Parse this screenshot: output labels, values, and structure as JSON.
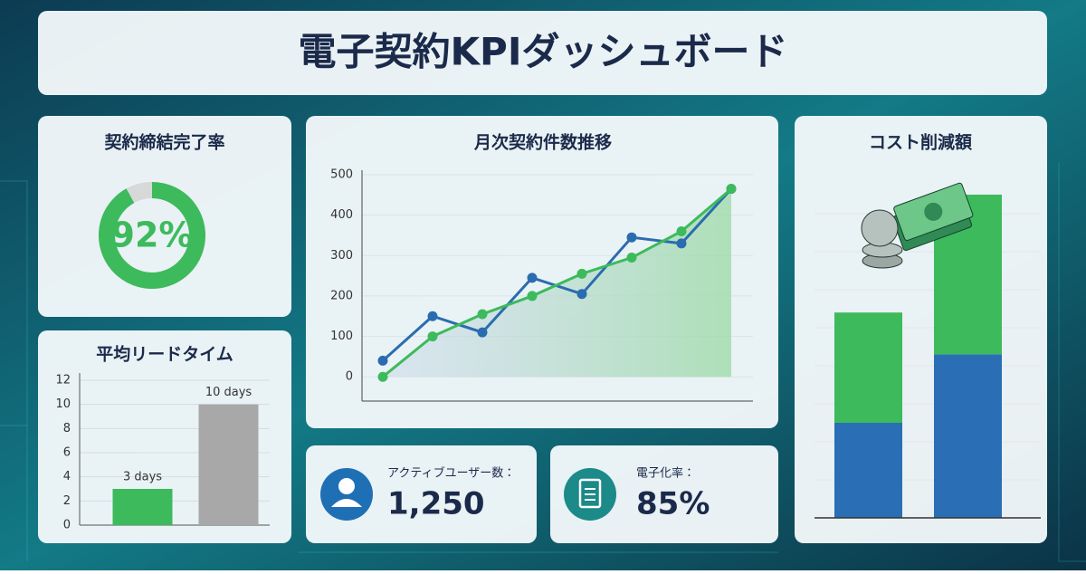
{
  "title": "電子契約KPIダッシュボード",
  "kpis": [
    {
      "label": "アクティブユーザー数：",
      "value": "1,250"
    },
    {
      "label": "電子化率：",
      "value": "85%"
    }
  ],
  "chart_data": [
    {
      "type": "donut",
      "title": "契約締結完了率",
      "values": [
        92
      ],
      "value_labels": [
        "92%"
      ],
      "ylim": [
        0,
        100
      ],
      "color": "#3dba5c",
      "track_color": "#d6d9d8"
    },
    {
      "type": "bar",
      "title": "平均リードタイム",
      "categories": [
        null,
        null
      ],
      "values": [
        3,
        10
      ],
      "value_labels": [
        "3 days",
        "10 days"
      ],
      "colors": [
        "#3dba5c",
        "#a8a8a8"
      ],
      "ylim": [
        0,
        12
      ],
      "yticks": [
        0,
        2,
        4,
        6,
        8,
        10,
        12
      ],
      "grid": true
    },
    {
      "type": "line",
      "title": "月次契約件数推移",
      "categories": [
        null,
        null,
        null,
        null,
        null,
        null,
        null,
        null
      ],
      "series": [
        {
          "color": "#2b6cb0",
          "values": [
            40,
            150,
            110,
            245,
            205,
            345,
            330,
            465
          ]
        },
        {
          "color": "#3dba5c",
          "values": [
            0,
            100,
            155,
            200,
            255,
            295,
            360,
            465
          ],
          "area": true
        }
      ],
      "ylim": [
        -60,
        500
      ],
      "yticks": [
        0,
        100,
        200,
        300,
        400,
        500
      ],
      "grid": true
    },
    {
      "type": "stacked_bar",
      "title": "コスト削減額",
      "categories": [
        null,
        null
      ],
      "series": [
        {
          "color": "#2a6fb5",
          "values": [
            2.5,
            4.3
          ]
        },
        {
          "color": "#3dba5c",
          "values": [
            2.9,
            4.2
          ]
        }
      ],
      "ylim": [
        0,
        9
      ]
    }
  ]
}
